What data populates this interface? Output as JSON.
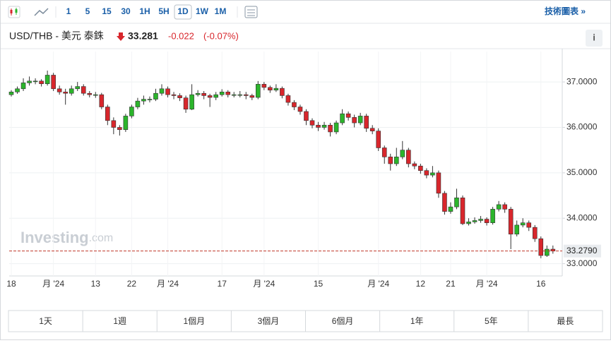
{
  "toolbar": {
    "intervals": [
      "1",
      "5",
      "15",
      "30",
      "1H",
      "5H",
      "1D",
      "1W",
      "1M"
    ],
    "selected_interval_index": 6,
    "tech_link": "技術圖表 »"
  },
  "header": {
    "symbol": "USD/THB - 美元 泰銖",
    "price": "33.281",
    "change": "-0.022",
    "change_pct": "(-0.07%)",
    "info": "i"
  },
  "watermark": {
    "brand": "Investing",
    "suffix": ".com"
  },
  "chart_data": {
    "type": "candlestick",
    "categories": [
      "18",
      null,
      null,
      null,
      null,
      null,
      null,
      "月 '24",
      null,
      null,
      null,
      null,
      null,
      null,
      "13",
      null,
      null,
      null,
      null,
      null,
      "22",
      null,
      null,
      null,
      null,
      null,
      "月 '24",
      null,
      null,
      null,
      null,
      null,
      null,
      null,
      null,
      "17",
      null,
      null,
      null,
      null,
      null,
      null,
      "月 '24",
      null,
      null,
      null,
      null,
      null,
      null,
      null,
      null,
      "15",
      null,
      null,
      null,
      null,
      null,
      null,
      null,
      null,
      null,
      "月 '24",
      null,
      null,
      null,
      null,
      null,
      null,
      "12",
      null,
      null,
      null,
      null,
      "21",
      null,
      null,
      null,
      null,
      null,
      "月 '24",
      null,
      null,
      null,
      null,
      null,
      null,
      null,
      null,
      "16",
      null,
      null
    ],
    "open": [
      36.72,
      36.78,
      36.85,
      36.98,
      37.02,
      37.02,
      36.96,
      37.15,
      36.85,
      36.78,
      36.75,
      36.85,
      36.9,
      36.75,
      36.72,
      36.72,
      36.45,
      36.15,
      36.0,
      35.95,
      36.25,
      36.45,
      36.58,
      36.62,
      36.62,
      36.75,
      36.85,
      36.72,
      36.7,
      36.65,
      36.4,
      36.72,
      36.75,
      36.7,
      36.66,
      36.72,
      36.78,
      36.72,
      36.72,
      36.72,
      36.7,
      36.66,
      36.95,
      36.88,
      36.82,
      36.86,
      36.7,
      36.55,
      36.45,
      36.35,
      36.15,
      36.05,
      36.0,
      36.05,
      35.9,
      36.1,
      36.3,
      36.22,
      36.1,
      36.25,
      35.98,
      35.92,
      35.55,
      35.35,
      35.2,
      35.35,
      35.5,
      35.2,
      35.15,
      35.05,
      34.95,
      35.0,
      34.55,
      34.15,
      34.25,
      34.45,
      33.88,
      33.92,
      33.95,
      33.98,
      33.9,
      34.2,
      34.3,
      34.2,
      33.65,
      33.85,
      33.9,
      33.8,
      33.55,
      33.18,
      33.32
    ],
    "high": [
      36.82,
      36.9,
      37.08,
      37.12,
      37.08,
      37.06,
      37.25,
      37.2,
      36.92,
      36.85,
      36.92,
      37.0,
      36.95,
      36.8,
      36.78,
      36.76,
      36.5,
      36.22,
      36.05,
      36.3,
      36.5,
      36.65,
      36.7,
      36.68,
      36.85,
      36.95,
      36.9,
      36.78,
      36.75,
      36.7,
      36.95,
      36.82,
      36.8,
      36.74,
      36.78,
      36.84,
      36.82,
      36.78,
      36.8,
      36.78,
      36.74,
      37.02,
      37.0,
      36.92,
      36.95,
      36.9,
      36.74,
      36.6,
      36.5,
      36.4,
      36.2,
      36.12,
      36.12,
      36.1,
      36.15,
      36.4,
      36.35,
      36.28,
      36.32,
      36.3,
      36.05,
      35.98,
      35.6,
      35.42,
      35.55,
      35.7,
      35.55,
      35.25,
      35.2,
      35.1,
      35.15,
      35.05,
      34.6,
      34.35,
      34.65,
      34.5,
      34.0,
      34.02,
      34.05,
      34.02,
      34.25,
      34.38,
      34.35,
      34.25,
      33.95,
      34.0,
      33.95,
      33.85,
      33.6,
      33.4,
      33.4
    ],
    "low": [
      36.68,
      36.74,
      36.8,
      36.92,
      36.95,
      36.9,
      36.92,
      36.8,
      36.72,
      36.5,
      36.7,
      36.8,
      36.7,
      36.66,
      36.65,
      36.4,
      36.05,
      35.85,
      35.82,
      35.9,
      36.2,
      36.4,
      36.5,
      36.55,
      36.58,
      36.7,
      36.66,
      36.62,
      36.58,
      36.32,
      36.38,
      36.68,
      36.62,
      36.45,
      36.6,
      36.68,
      36.66,
      36.66,
      36.66,
      36.62,
      36.6,
      36.62,
      36.82,
      36.76,
      36.78,
      36.64,
      36.48,
      36.38,
      36.28,
      36.05,
      35.98,
      35.92,
      35.95,
      35.8,
      35.85,
      36.05,
      36.15,
      36.0,
      36.05,
      35.9,
      35.85,
      35.48,
      35.2,
      35.05,
      35.15,
      35.3,
      35.12,
      35.08,
      34.98,
      34.88,
      34.9,
      34.45,
      34.08,
      34.1,
      34.2,
      33.85,
      33.84,
      33.88,
      33.9,
      33.84,
      33.86,
      34.15,
      34.12,
      33.32,
      33.6,
      33.8,
      33.72,
      33.48,
      33.12,
      33.15,
      33.22
    ],
    "close": [
      36.78,
      36.85,
      36.98,
      37.02,
      37.02,
      36.96,
      37.15,
      36.85,
      36.78,
      36.75,
      36.85,
      36.9,
      36.75,
      36.72,
      36.72,
      36.45,
      36.15,
      36.0,
      35.95,
      36.25,
      36.45,
      36.58,
      36.62,
      36.62,
      36.75,
      36.85,
      36.72,
      36.7,
      36.65,
      36.4,
      36.72,
      36.75,
      36.7,
      36.66,
      36.72,
      36.78,
      36.72,
      36.72,
      36.72,
      36.7,
      36.66,
      36.95,
      36.88,
      36.82,
      36.86,
      36.7,
      36.55,
      36.45,
      36.35,
      36.15,
      36.05,
      36.0,
      36.05,
      35.9,
      36.1,
      36.3,
      36.22,
      36.1,
      36.25,
      35.98,
      35.92,
      35.55,
      35.35,
      35.2,
      35.35,
      35.5,
      35.2,
      35.15,
      35.05,
      34.95,
      35.0,
      34.55,
      34.15,
      34.25,
      34.45,
      33.88,
      33.92,
      33.95,
      33.98,
      33.9,
      34.2,
      34.3,
      34.2,
      33.65,
      33.85,
      33.9,
      33.8,
      33.55,
      33.18,
      33.32,
      33.28
    ],
    "up_color": "#2bb52b",
    "down_color": "#d8262c",
    "ylim": [
      32.73,
      37.67
    ],
    "yticks": [
      {
        "value": 33,
        "label": "33.0000"
      },
      {
        "value": 34,
        "label": "34.0000"
      },
      {
        "value": 35,
        "label": "35.0000"
      },
      {
        "value": 36,
        "label": "36.0000"
      },
      {
        "value": 37,
        "label": "37.0000"
      }
    ],
    "grid": true,
    "price_line": {
      "value": 33.279,
      "label": "33.2790",
      "color": "#c0392b"
    }
  },
  "ranges": [
    "1天",
    "1週",
    "1個月",
    "3個月",
    "6個月",
    "1年",
    "5年",
    "最長"
  ]
}
